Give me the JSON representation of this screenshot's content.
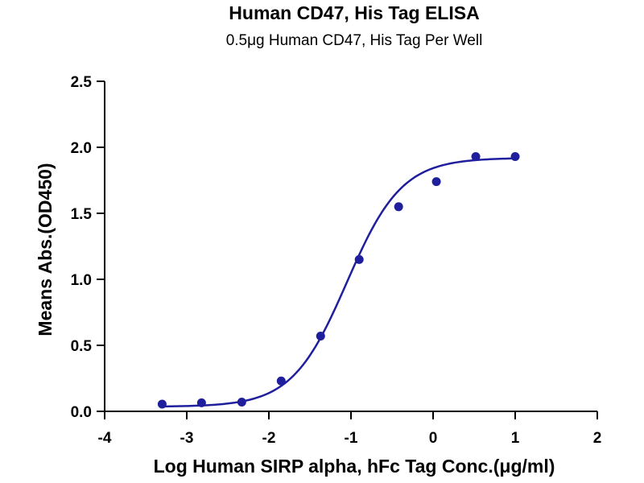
{
  "chart_data": {
    "type": "scatter",
    "title": "Human CD47, His Tag ELISA",
    "subtitle": "0.5μg Human CD47, His Tag  Per Well",
    "xlabel": "Log Human SIRP alpha, hFc Tag Conc.(μg/ml)",
    "ylabel": "Means Abs.(OD450)",
    "xlim": [
      -4,
      2
    ],
    "ylim": [
      0,
      2.5
    ],
    "x_ticks": [
      -4,
      -3,
      -2,
      -1,
      0,
      1,
      2
    ],
    "x_tick_labels": [
      "-4",
      "-3",
      "-2",
      "-1",
      "0",
      "1",
      "2"
    ],
    "y_ticks": [
      0,
      0.5,
      1,
      1.5,
      2,
      2.5
    ],
    "y_tick_labels": [
      "0.0",
      "0.5",
      "1.0",
      "1.5",
      "2.0",
      "2.5"
    ],
    "grid": false,
    "color": "#1f1f9e",
    "series": [
      {
        "x": [
          -3.3,
          -2.82,
          -2.33,
          -1.85,
          -1.37,
          -0.9,
          -0.42,
          0.04,
          0.52,
          1.0
        ],
        "y": [
          0.055,
          0.065,
          0.07,
          0.23,
          0.57,
          1.15,
          1.55,
          1.74,
          1.93,
          1.93
        ]
      }
    ],
    "fit": {
      "type": "4PL",
      "bottom": 0.035,
      "top": 1.92,
      "logEC50": -1.05,
      "hill": 1.3,
      "x_range": [
        -3.3,
        1.0
      ]
    }
  }
}
